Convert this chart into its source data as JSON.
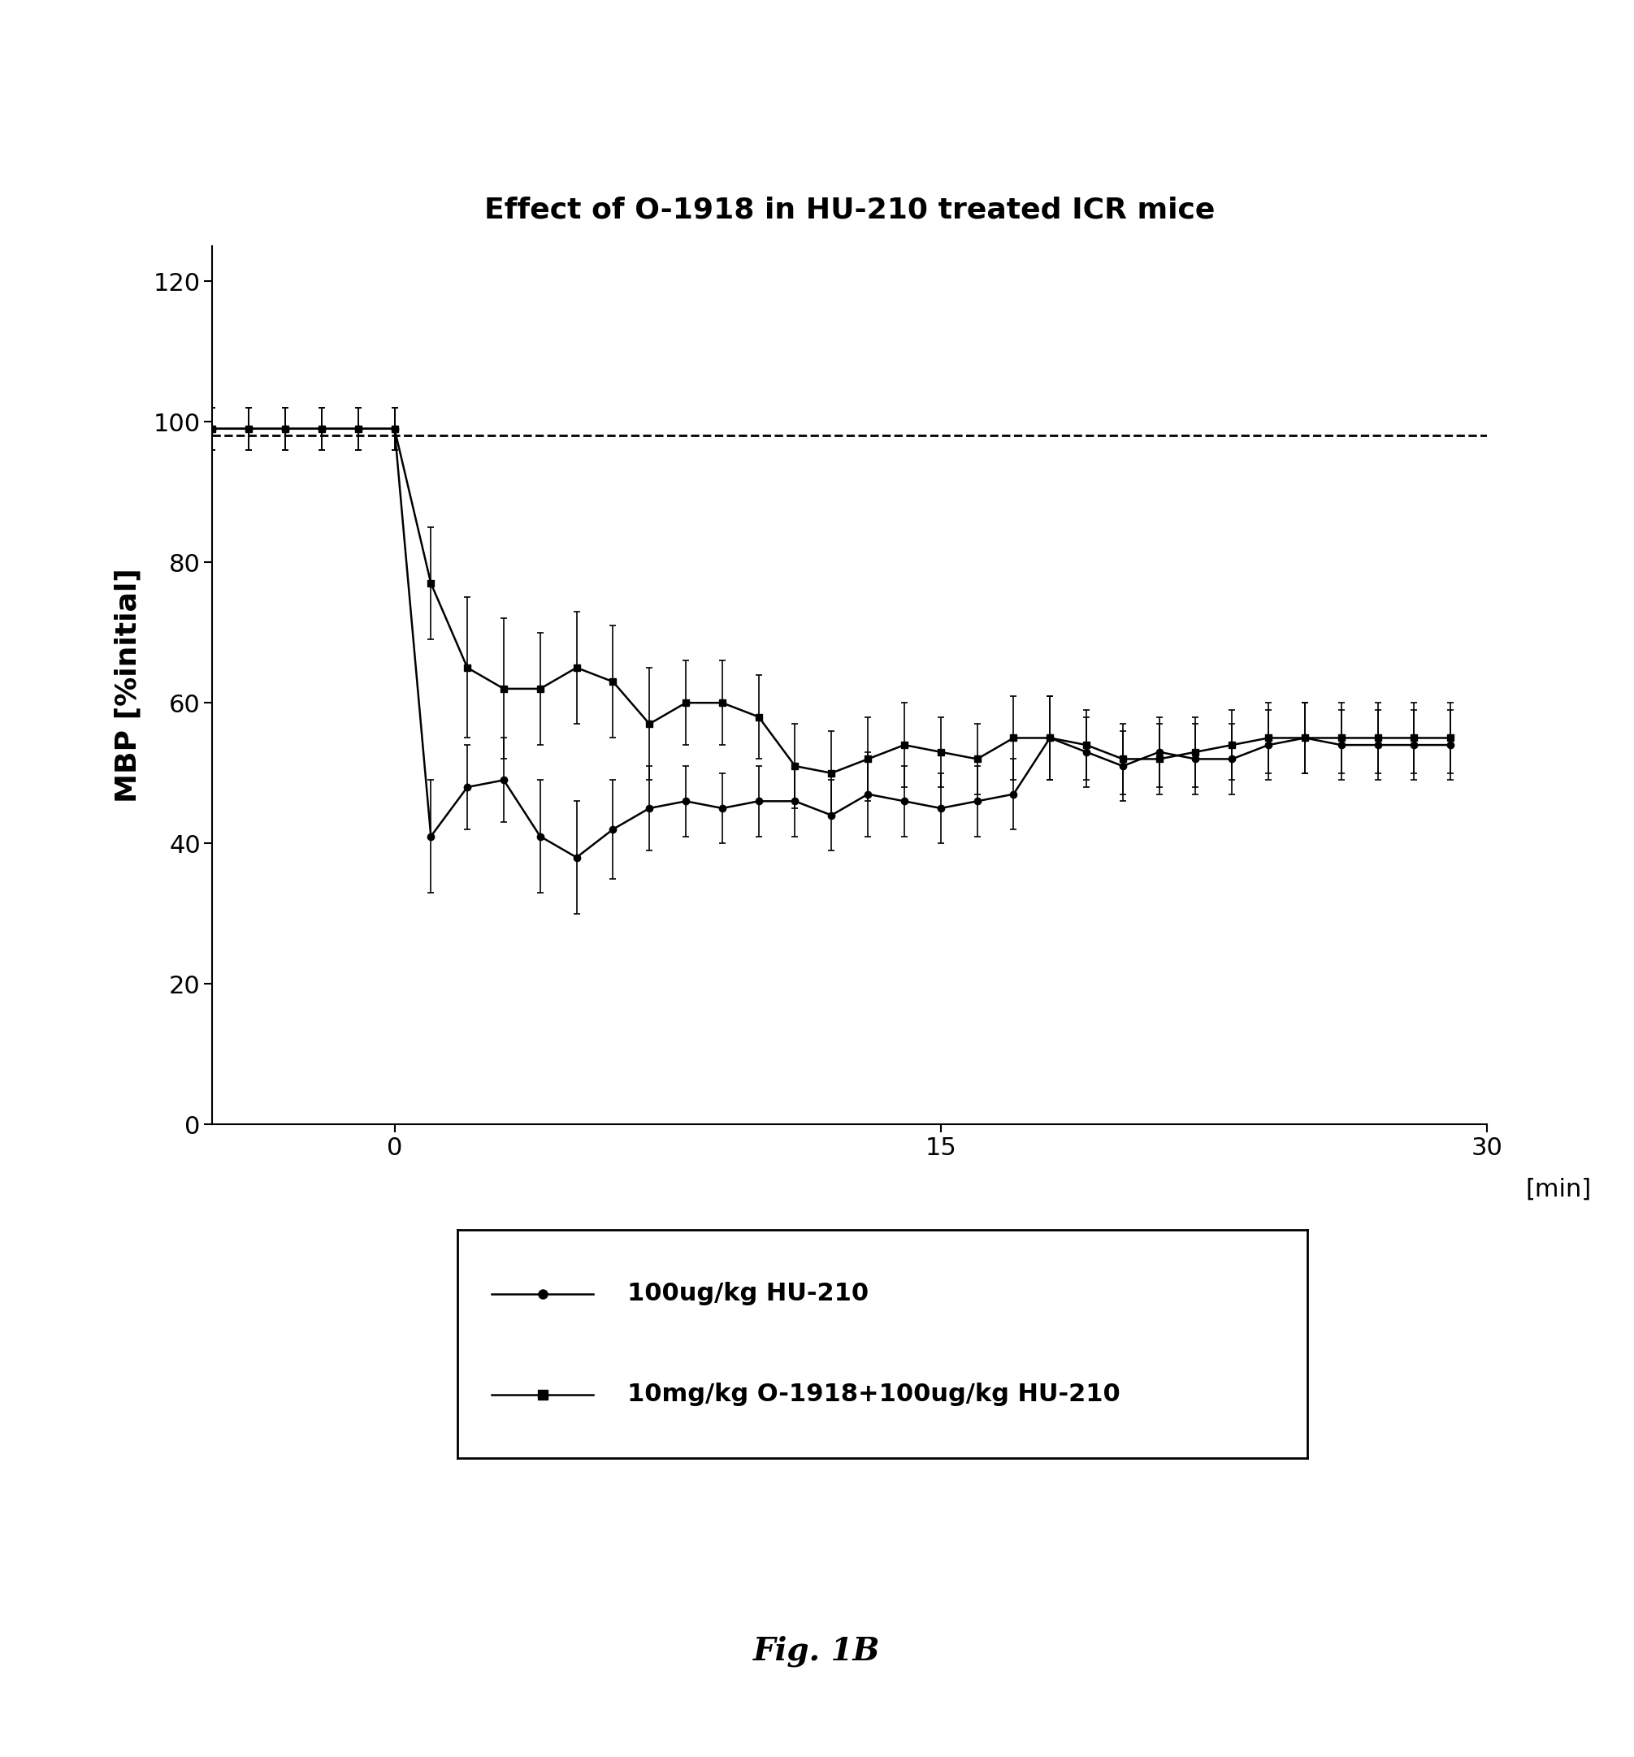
{
  "title": "Effect of O-1918 in HU-210 treated ICR mice",
  "xlabel": "[min]",
  "ylabel": "MBP [%initial]",
  "figcaption": "Fig. 1B",
  "xlim": [
    -5,
    30
  ],
  "ylim": [
    0,
    125
  ],
  "yticks": [
    0,
    20,
    40,
    60,
    80,
    100,
    120
  ],
  "xticks": [
    0,
    15,
    30
  ],
  "dashed_y": 98,
  "series1": {
    "label": "100ug/kg HU-210",
    "x": [
      -5,
      -4,
      -3,
      -2,
      -1,
      0,
      1,
      2,
      3,
      4,
      5,
      6,
      7,
      8,
      9,
      10,
      11,
      12,
      13,
      14,
      15,
      16,
      17,
      18,
      19,
      20,
      21,
      22,
      23,
      24,
      25,
      26,
      27,
      28,
      29
    ],
    "y": [
      99,
      99,
      99,
      99,
      99,
      99,
      41,
      48,
      49,
      41,
      38,
      42,
      45,
      46,
      45,
      46,
      46,
      44,
      47,
      46,
      45,
      46,
      47,
      55,
      53,
      51,
      53,
      52,
      52,
      54,
      55,
      54,
      54,
      54,
      54
    ],
    "yerr": [
      3,
      3,
      3,
      3,
      3,
      3,
      8,
      6,
      6,
      8,
      8,
      7,
      6,
      5,
      5,
      5,
      5,
      5,
      6,
      5,
      5,
      5,
      5,
      6,
      5,
      5,
      5,
      5,
      5,
      5,
      5,
      5,
      5,
      5,
      5
    ],
    "marker": "o",
    "color": "#000000",
    "lw": 1.8,
    "markersize": 6
  },
  "series2": {
    "label": "10mg/kg O-1918+100ug/kg HU-210",
    "x": [
      -5,
      -4,
      -3,
      -2,
      -1,
      0,
      1,
      2,
      3,
      4,
      5,
      6,
      7,
      8,
      9,
      10,
      11,
      12,
      13,
      14,
      15,
      16,
      17,
      18,
      19,
      20,
      21,
      22,
      23,
      24,
      25,
      26,
      27,
      28,
      29
    ],
    "y": [
      99,
      99,
      99,
      99,
      99,
      99,
      77,
      65,
      62,
      62,
      65,
      63,
      57,
      60,
      60,
      58,
      51,
      50,
      52,
      54,
      53,
      52,
      55,
      55,
      54,
      52,
      52,
      53,
      54,
      55,
      55,
      55,
      55,
      55,
      55
    ],
    "yerr": [
      3,
      3,
      3,
      3,
      3,
      3,
      8,
      10,
      10,
      8,
      8,
      8,
      8,
      6,
      6,
      6,
      6,
      6,
      6,
      6,
      5,
      5,
      6,
      6,
      5,
      5,
      5,
      5,
      5,
      5,
      5,
      5,
      5,
      5,
      5
    ],
    "marker": "s",
    "color": "#000000",
    "lw": 1.8,
    "markersize": 6
  }
}
